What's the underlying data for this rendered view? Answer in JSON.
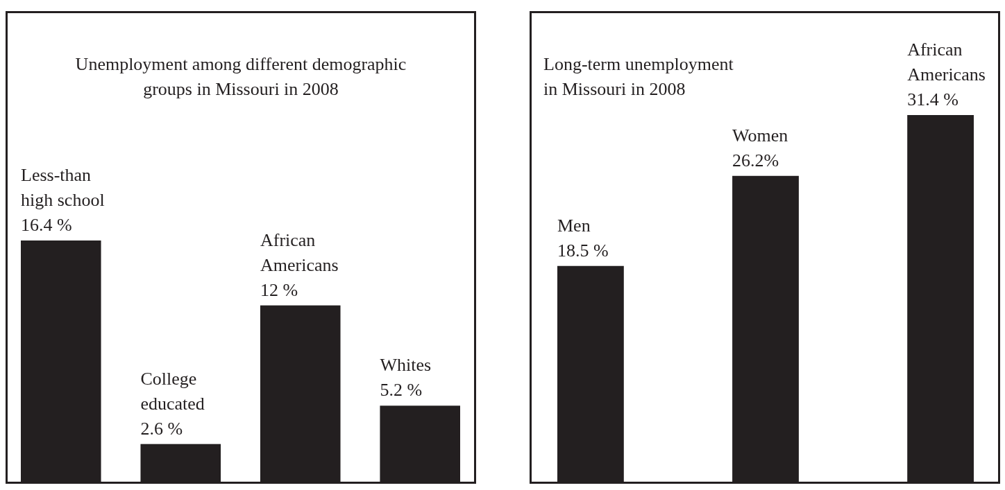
{
  "chart_data": [
    {
      "type": "bar",
      "title": "Unemployment among different demographic groups in Missouri in 2008",
      "categories": [
        "Less-than high school",
        "College educated",
        "African Americans",
        "Whites"
      ],
      "values": [
        16.4,
        2.6,
        12,
        5.2
      ],
      "value_labels": [
        "16.4 %",
        "2.6 %",
        "12 %",
        "5.2 %"
      ],
      "color": "#231f20"
    },
    {
      "type": "bar",
      "title": "Long-term unemployment in Missouri in 2008",
      "categories": [
        "Men",
        "Women",
        "African Americans"
      ],
      "values": [
        18.5,
        26.2,
        31.4
      ],
      "value_labels": [
        "18.5 %",
        "26.2%",
        "31.4 %"
      ],
      "color": "#231f20"
    }
  ]
}
